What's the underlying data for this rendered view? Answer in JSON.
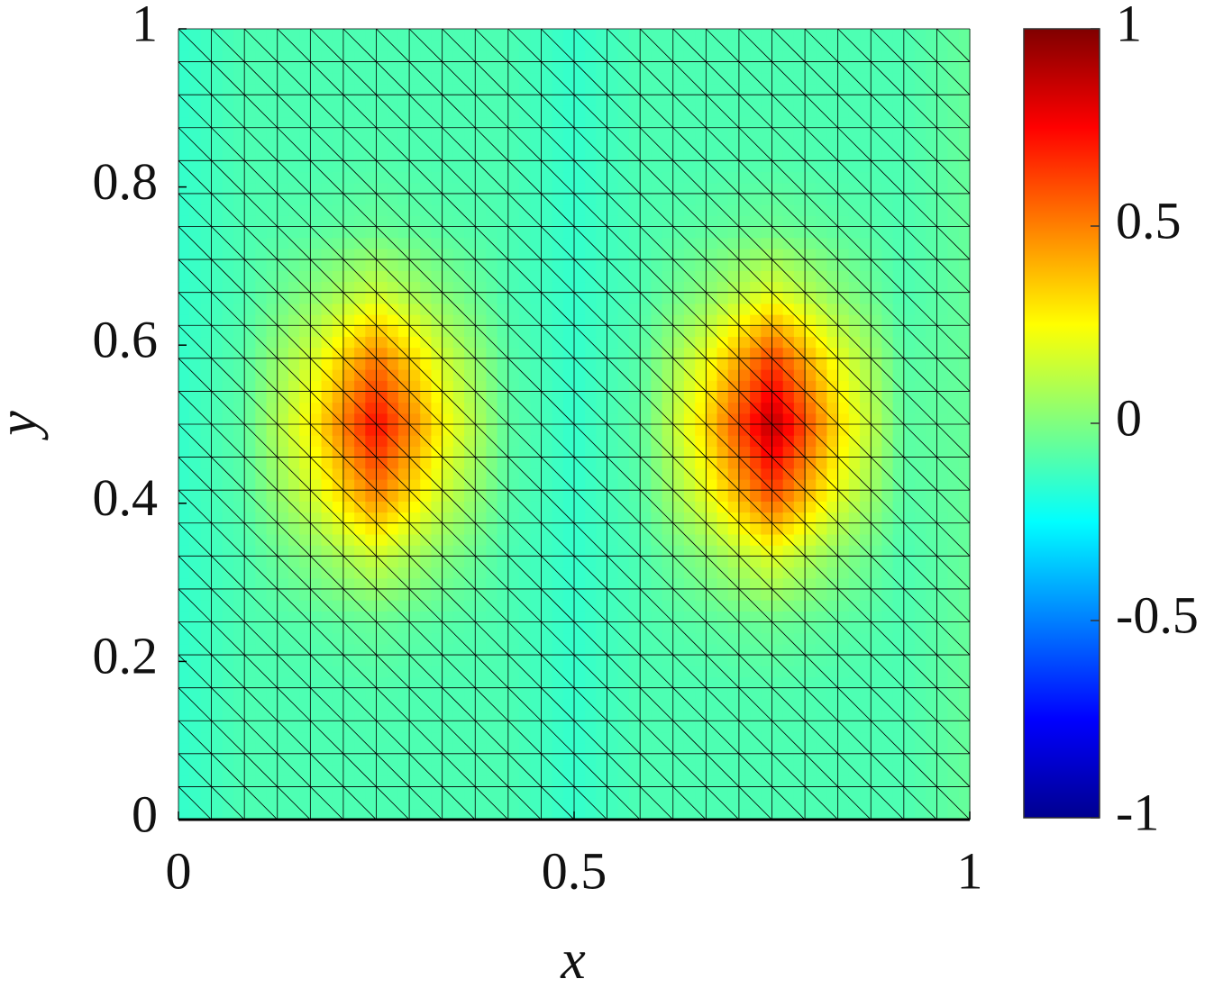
{
  "chart_data": {
    "type": "heatmap",
    "colormap": "jet",
    "xlabel": "x",
    "ylabel": "y",
    "x": [
      0,
      0.0833,
      0.1667,
      0.25,
      0.3333,
      0.4167,
      0.5,
      0.5833,
      0.6667,
      0.75,
      0.8333,
      0.9167,
      1
    ],
    "y": [
      0,
      0.0833,
      0.1667,
      0.25,
      0.3333,
      0.4167,
      0.5,
      0.5833,
      0.6667,
      0.75,
      0.8333,
      0.9167,
      1
    ],
    "z": [
      [
        -0.15,
        -0.1,
        -0.1,
        -0.1,
        -0.1,
        -0.1,
        -0.15,
        -0.1,
        -0.1,
        -0.1,
        -0.1,
        -0.1,
        -0.05
      ],
      [
        -0.15,
        -0.1,
        -0.1,
        -0.1,
        -0.1,
        -0.1,
        -0.15,
        -0.1,
        -0.1,
        -0.1,
        -0.1,
        -0.1,
        -0.05
      ],
      [
        -0.15,
        -0.1,
        -0.1,
        -0.09,
        -0.1,
        -0.1,
        -0.15,
        -0.1,
        -0.1,
        -0.09,
        -0.1,
        -0.1,
        -0.05
      ],
      [
        -0.15,
        -0.1,
        -0.08,
        -0.05,
        -0.08,
        -0.1,
        -0.15,
        -0.1,
        -0.07,
        -0.04,
        -0.07,
        -0.1,
        -0.05
      ],
      [
        -0.15,
        -0.1,
        0.01,
        0.15,
        0.01,
        -0.1,
        -0.15,
        -0.1,
        0.02,
        0.19,
        0.02,
        -0.1,
        -0.05
      ],
      [
        -0.15,
        -0.08,
        0.16,
        0.52,
        0.16,
        -0.08,
        -0.15,
        -0.08,
        0.21,
        0.63,
        0.21,
        -0.08,
        -0.05
      ],
      [
        -0.15,
        -0.07,
        0.26,
        0.75,
        0.26,
        -0.07,
        -0.15,
        -0.07,
        0.32,
        0.9,
        0.32,
        -0.07,
        -0.05
      ],
      [
        -0.15,
        -0.08,
        0.16,
        0.52,
        0.16,
        -0.08,
        -0.15,
        -0.08,
        0.21,
        0.63,
        0.21,
        -0.08,
        -0.05
      ],
      [
        -0.15,
        -0.1,
        0.01,
        0.15,
        0.01,
        -0.1,
        -0.15,
        -0.1,
        0.02,
        0.19,
        0.02,
        -0.1,
        -0.05
      ],
      [
        -0.15,
        -0.1,
        -0.08,
        -0.05,
        -0.08,
        -0.1,
        -0.15,
        -0.1,
        -0.07,
        -0.04,
        -0.07,
        -0.1,
        -0.05
      ],
      [
        -0.15,
        -0.1,
        -0.1,
        -0.09,
        -0.1,
        -0.1,
        -0.15,
        -0.1,
        -0.1,
        -0.09,
        -0.1,
        -0.1,
        -0.05
      ],
      [
        -0.15,
        -0.1,
        -0.1,
        -0.1,
        -0.1,
        -0.1,
        -0.15,
        -0.1,
        -0.1,
        -0.1,
        -0.1,
        -0.1,
        -0.05
      ],
      [
        -0.15,
        -0.1,
        -0.1,
        -0.1,
        -0.1,
        -0.1,
        -0.15,
        -0.1,
        -0.1,
        -0.1,
        -0.1,
        -0.1,
        -0.05
      ]
    ],
    "xlim": [
      0,
      1
    ],
    "xticks": [
      0,
      0.5,
      1
    ],
    "ylim": [
      0,
      1
    ],
    "yticks": [
      0,
      0.2,
      0.4,
      0.6,
      0.8,
      1
    ],
    "clim": [
      -1,
      1
    ],
    "cticks": [
      -1,
      -0.5,
      0,
      0.5,
      1
    ]
  }
}
